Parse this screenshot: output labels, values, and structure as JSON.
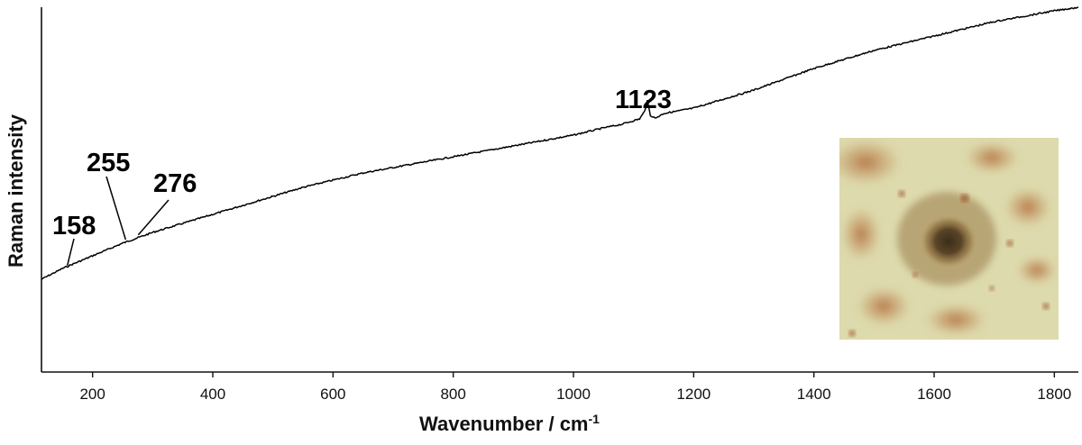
{
  "chart_data": {
    "type": "line",
    "title": "",
    "xlabel": "Wavenumber / cm",
    "xlabel_superscript": "-1",
    "ylabel": "Raman intensity",
    "xlim": [
      115,
      1840
    ],
    "ylim": [
      0,
      100
    ],
    "x_ticks": [
      200,
      400,
      600,
      800,
      1000,
      1200,
      1400,
      1600,
      1800
    ],
    "y_ticks_shown": false,
    "grid": false,
    "series": [
      {
        "x": [
          115,
          150,
          200,
          250,
          300,
          350,
          400,
          450,
          500,
          550,
          600,
          650,
          700,
          750,
          800,
          850,
          900,
          950,
          1000,
          1050,
          1080,
          1100,
          1110,
          1118,
          1123,
          1128,
          1136,
          1150,
          1200,
          1250,
          1300,
          1350,
          1400,
          1450,
          1500,
          1550,
          1600,
          1650,
          1700,
          1750,
          1800,
          1840
        ],
        "y": [
          24.5,
          27.5,
          31.0,
          34.5,
          37.5,
          40.0,
          42.5,
          45.0,
          47.5,
          50.0,
          52.0,
          54.0,
          55.5,
          57.0,
          58.5,
          60.0,
          61.5,
          63.0,
          64.5,
          66.5,
          67.5,
          68.5,
          69.0,
          71.0,
          74.0,
          70.0,
          69.2,
          70.5,
          72.0,
          74.5,
          77.0,
          80.0,
          83.0,
          85.5,
          88.0,
          90.0,
          92.0,
          94.0,
          96.0,
          97.5,
          99.0,
          100.0
        ]
      }
    ],
    "annotations": [
      {
        "text": "158",
        "x": 158,
        "y": 27.8
      },
      {
        "text": "255",
        "x": 255,
        "y": 35.0
      },
      {
        "text": "276",
        "x": 276,
        "y": 36.3
      },
      {
        "text": "1123",
        "x": 1123,
        "y": 74.0
      }
    ],
    "inset": "microscope-photo"
  }
}
